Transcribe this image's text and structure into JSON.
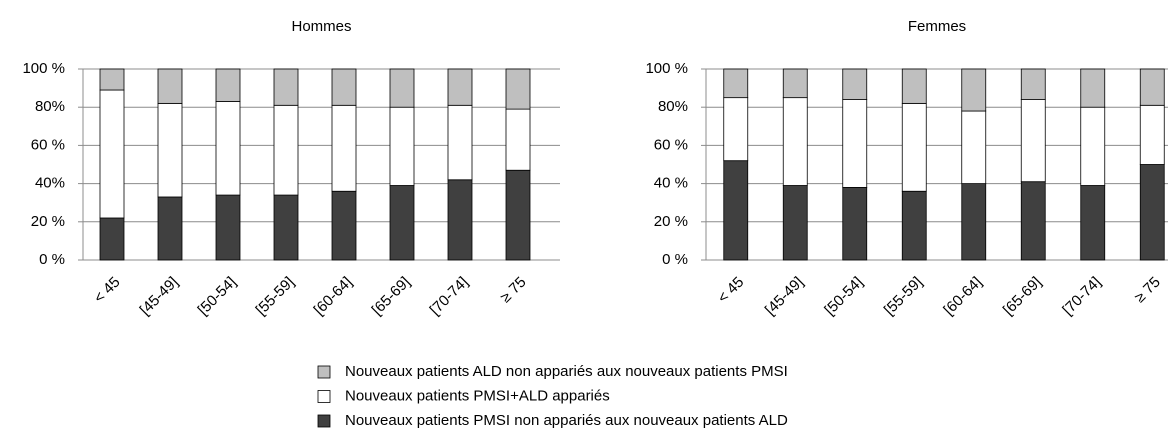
{
  "chart_data": [
    {
      "type": "stacked_bar",
      "title": "Hommes",
      "categories": [
        "< 45",
        "[45-49]",
        "[50-54]",
        "[55-59]",
        "[60-64]",
        "[65-69]",
        "[70-74]",
        "≥ 75"
      ],
      "series": [
        {
          "name": "Nouveaux patients PMSI non appariés aux nouveaux patients ALD",
          "color": "#404040",
          "values": [
            22,
            33,
            34,
            34,
            36,
            39,
            42,
            47
          ]
        },
        {
          "name": "Nouveaux patients PMSI+ALD appariés",
          "color": "#ffffff",
          "values": [
            67,
            49,
            49,
            47,
            45,
            41,
            39,
            32
          ]
        },
        {
          "name": "Nouveaux patients ALD non appariés aux nouveaux patients PMSI",
          "color": "#bfbfbf",
          "values": [
            11,
            18,
            17,
            19,
            19,
            20,
            19,
            21
          ]
        }
      ],
      "ylim": [
        0,
        100
      ],
      "yticks": [
        {
          "value": 0,
          "label": "0 %"
        },
        {
          "value": 20,
          "label": "20 %"
        },
        {
          "value": 40,
          "label": "40%"
        },
        {
          "value": 60,
          "label": "60 %"
        },
        {
          "value": 80,
          "label": "80%"
        },
        {
          "value": 100,
          "label": "100 %"
        }
      ],
      "grid": true
    },
    {
      "type": "stacked_bar",
      "title": "Femmes",
      "categories": [
        "< 45",
        "[45-49]",
        "[50-54]",
        "[55-59]",
        "[60-64]",
        "[65-69]",
        "[70-74]",
        "≥ 75"
      ],
      "series": [
        {
          "name": "Nouveaux patients PMSI non appariés aux nouveaux patients ALD",
          "color": "#404040",
          "values": [
            52,
            39,
            38,
            36,
            40,
            41,
            39,
            50
          ]
        },
        {
          "name": "Nouveaux patients PMSI+ALD appariés",
          "color": "#ffffff",
          "values": [
            33,
            46,
            46,
            46,
            38,
            43,
            41,
            31
          ]
        },
        {
          "name": "Nouveaux patients ALD non appariés aux nouveaux patients PMSI",
          "color": "#bfbfbf",
          "values": [
            15,
            15,
            16,
            18,
            22,
            16,
            20,
            19
          ]
        }
      ],
      "ylim": [
        0,
        100
      ],
      "yticks": [
        {
          "value": 0,
          "label": "0 %"
        },
        {
          "value": 20,
          "label": "20 %"
        },
        {
          "value": 40,
          "label": "40 %"
        },
        {
          "value": 60,
          "label": "60 %"
        },
        {
          "value": 80,
          "label": "80%"
        },
        {
          "value": 100,
          "label": "100 %"
        }
      ],
      "grid": true
    }
  ]
}
